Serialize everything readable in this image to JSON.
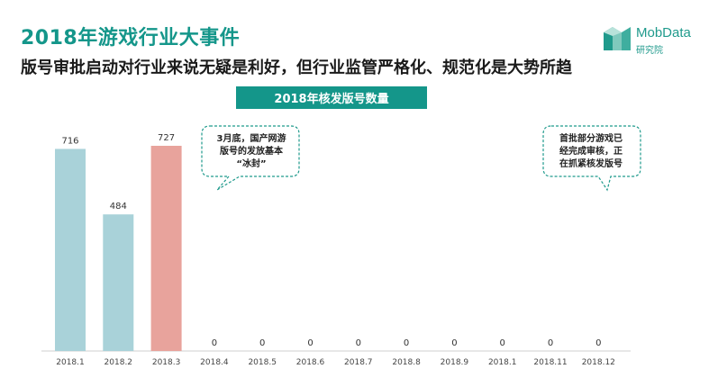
{
  "header": {
    "title": "2018年游戏行业大事件",
    "subtitle": "版号审批启动对行业来说无疑是利好，但行业监管严格化、规范化是大势所趋"
  },
  "logo": {
    "name": "MobData",
    "sub": "研究院"
  },
  "colors": {
    "accent": "#14968a",
    "bar_default": "#a9d2d9",
    "bar_highlight": "#e8a39c"
  },
  "chart_data": {
    "type": "bar",
    "title": "2018年核发版号数量",
    "categories": [
      "2018.1",
      "2018.2",
      "2018.3",
      "2018.4",
      "2018.5",
      "2018.6",
      "2018.7",
      "2018.8",
      "2018.9",
      "2018.1",
      "2018.11",
      "2018.12"
    ],
    "values": [
      716,
      484,
      727,
      0,
      0,
      0,
      0,
      0,
      0,
      0,
      0,
      0
    ],
    "highlight_index": 2,
    "ylim": [
      0,
      727
    ],
    "xlabel": "",
    "ylabel": "",
    "grid": false
  },
  "annotations": [
    {
      "text": "3月底，国产网游\n版号的发放基本\n“冰封”"
    },
    {
      "text": "首批部分游戏已\n经完成审核，正\n在抓紧核发版号"
    }
  ]
}
